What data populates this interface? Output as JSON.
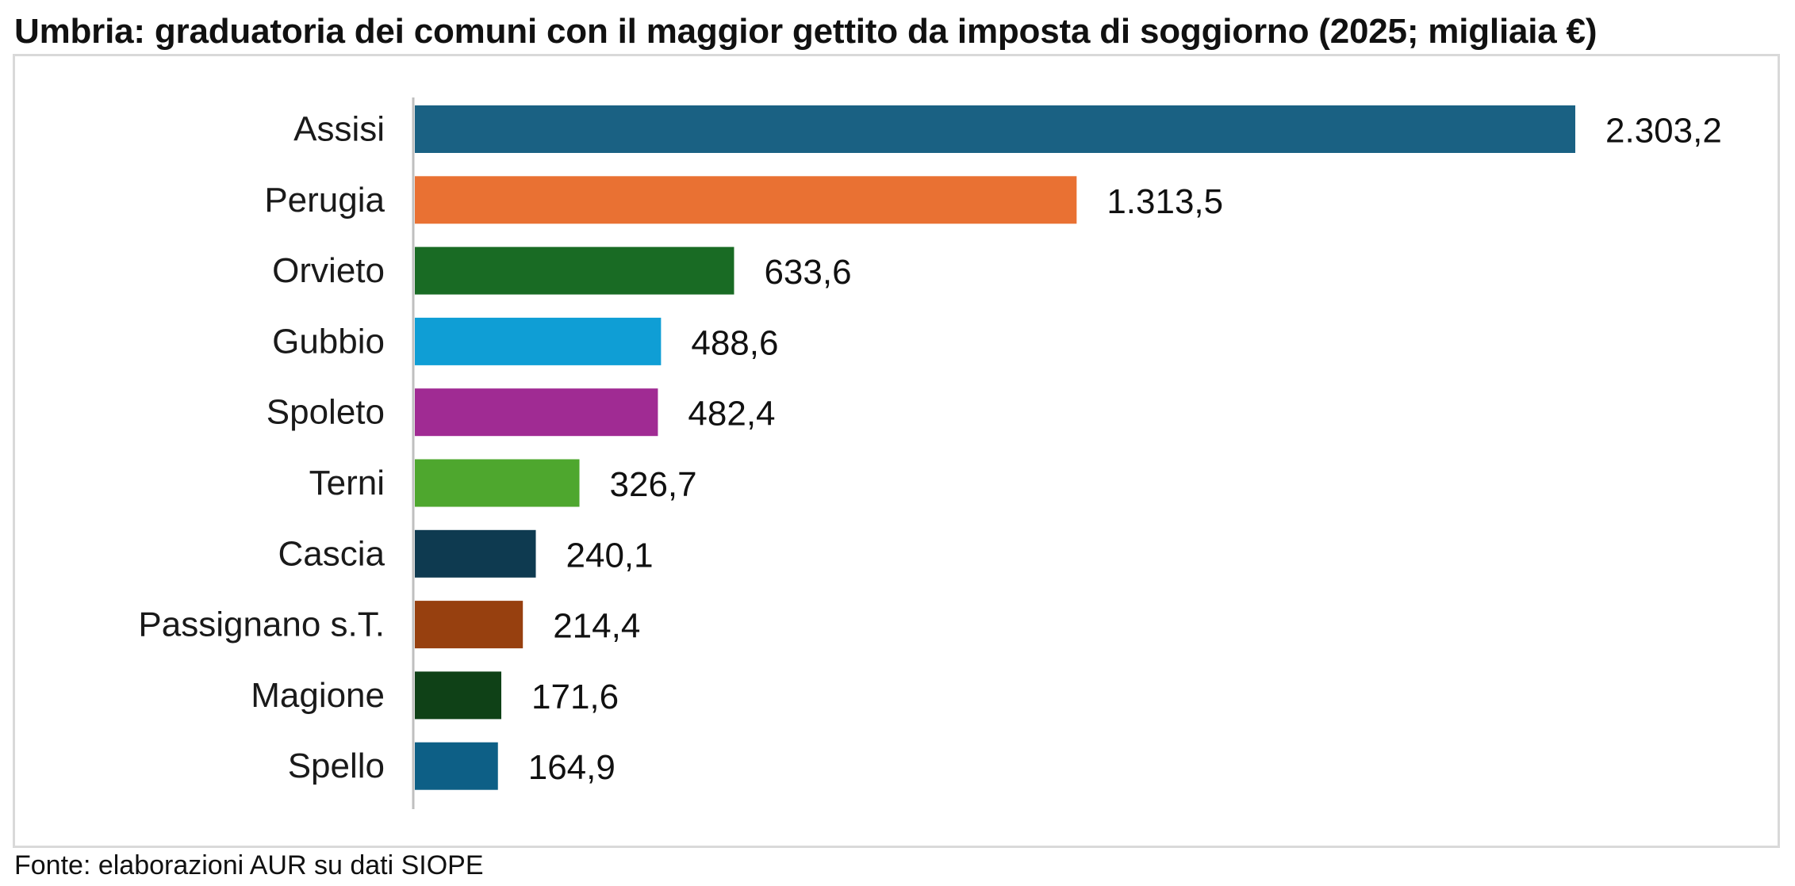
{
  "title": "Umbria: graduatoria dei comuni con il maggior gettito da imposta di soggiorno (2025; migliaia €)",
  "source": "Fonte: elaborazioni AUR su dati SIOPE",
  "chart_data": {
    "type": "bar",
    "orientation": "horizontal",
    "title": "Umbria: graduatoria dei comuni con il maggior gettito da imposta di soggiorno (2025; migliaia €)",
    "xlabel": "",
    "ylabel": "",
    "grid": false,
    "legend": false,
    "categories": [
      "Assisi",
      "Perugia",
      "Orvieto",
      "Gubbio",
      "Spoleto",
      "Terni",
      "Cascia",
      "Passignano s.T.",
      "Magione",
      "Spello"
    ],
    "values": [
      2303.2,
      1313.5,
      633.6,
      488.6,
      482.4,
      326.7,
      240.1,
      214.4,
      171.6,
      164.9
    ],
    "value_labels": [
      "2.303,2",
      "1.313,5",
      "633,6",
      "488,6",
      "482,4",
      "326,7",
      "240,1",
      "214,4",
      "171,6",
      "164,9"
    ],
    "colors": [
      "#1a6183",
      "#e97133",
      "#196b24",
      "#0f9ed5",
      "#a02b93",
      "#4ea72e",
      "#0e3a50",
      "#97400f",
      "#0f4117",
      "#0d5f86"
    ],
    "xlim": [
      0,
      2303.2
    ]
  }
}
